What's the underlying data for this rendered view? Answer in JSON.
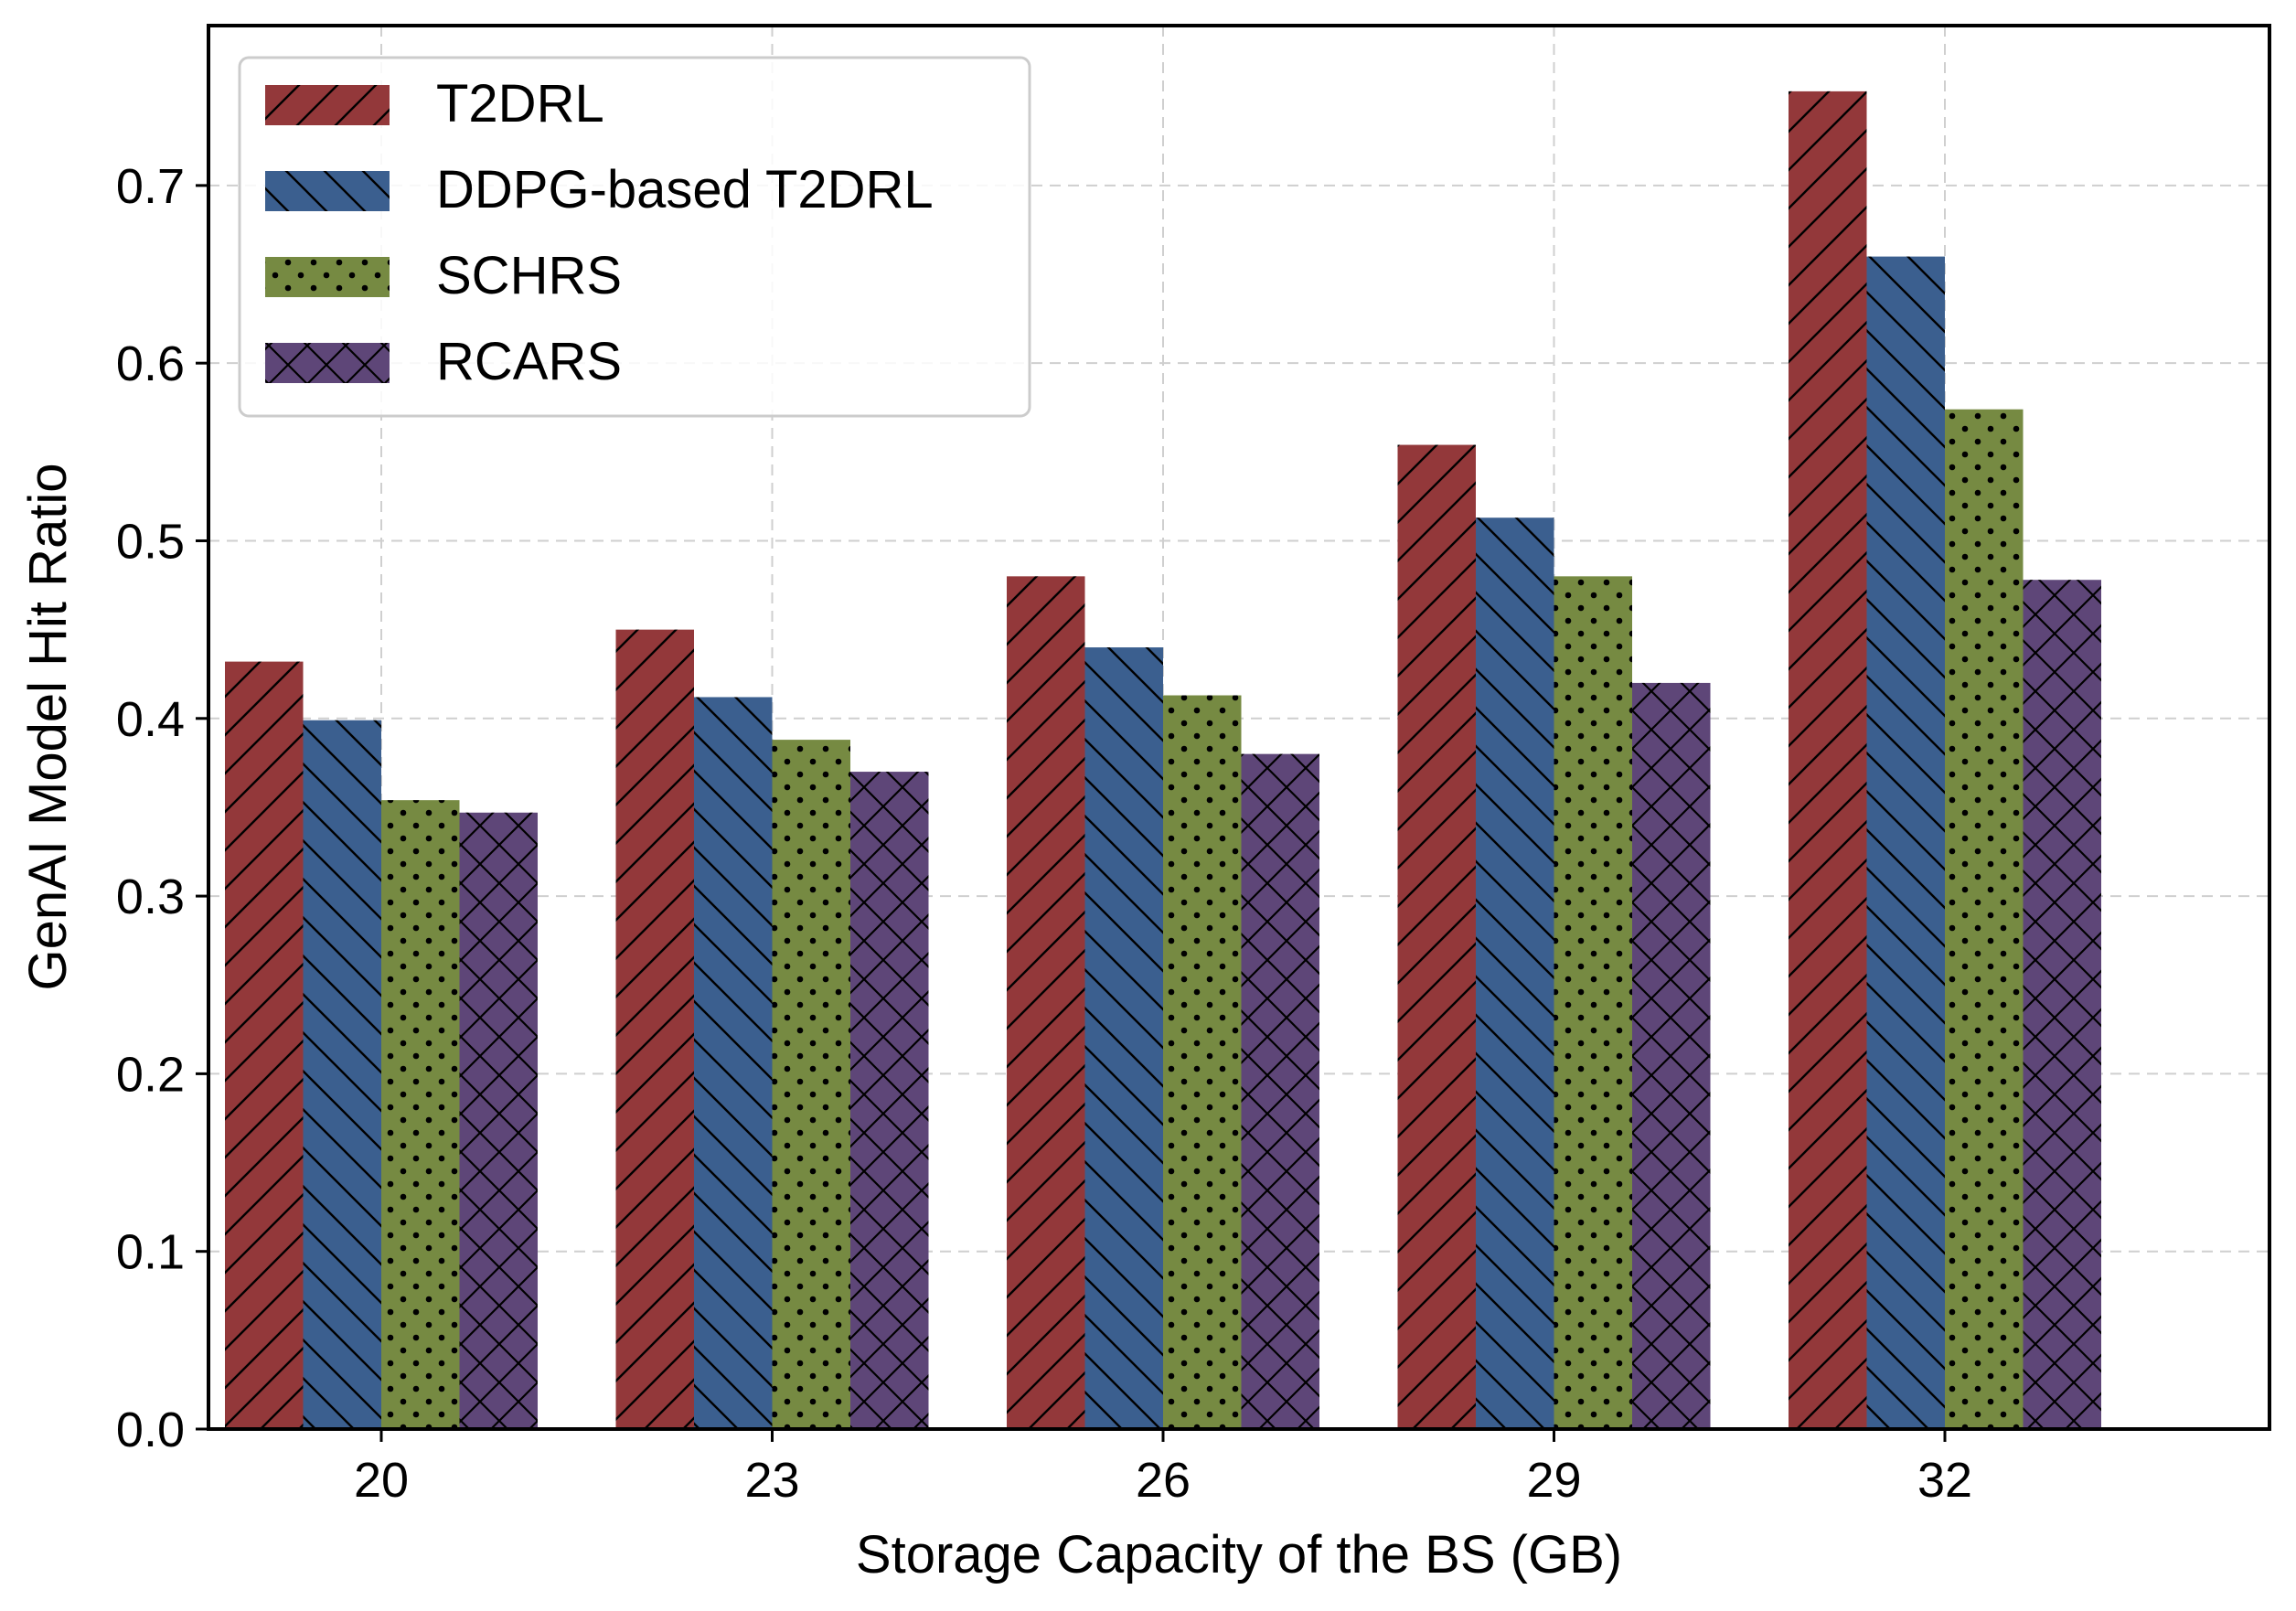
{
  "chart_data": {
    "type": "bar",
    "title": "",
    "xlabel": "Storage Capacity of the BS (GB)",
    "ylabel": "GenAI Model Hit Ratio",
    "categories": [
      "20",
      "23",
      "26",
      "29",
      "32"
    ],
    "ylim": [
      0,
      0.79
    ],
    "yticks": [
      "0.0",
      "0.1",
      "0.2",
      "0.3",
      "0.4",
      "0.5",
      "0.6",
      "0.7"
    ],
    "grid": true,
    "legend_position": "top-left",
    "series": [
      {
        "name": "T2DRL",
        "values": [
          0.432,
          0.45,
          0.48,
          0.554,
          0.753
        ],
        "color": "#93383a",
        "hatch": "forward-diagonal"
      },
      {
        "name": "DDPG-based T2DRL",
        "values": [
          0.399,
          0.412,
          0.44,
          0.513,
          0.66
        ],
        "color": "#3b5f8f",
        "hatch": "back-diagonal"
      },
      {
        "name": "SCHRS",
        "values": [
          0.354,
          0.388,
          0.413,
          0.48,
          0.574
        ],
        "color": "#768a42",
        "hatch": "dots"
      },
      {
        "name": "RCARS",
        "values": [
          0.347,
          0.37,
          0.38,
          0.42,
          0.478
        ],
        "color": "#5e4678",
        "hatch": "cross"
      }
    ]
  }
}
